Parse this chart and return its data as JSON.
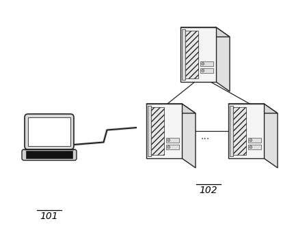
{
  "bg_color": "#ffffff",
  "label_101": "101",
  "label_102": "102",
  "dots_label": "...",
  "line_color": "#222222",
  "server_front_color": "#f5f5f5",
  "server_side_color": "#e0e0e0",
  "server_top_color": "#d8d8d8",
  "server_hatch_color": "#cccccc",
  "laptop_body_color": "#e8e8e8",
  "laptop_screen_color": "#ffffff",
  "laptop_keyboard_color": "#1a1a1a",
  "laptop_base_color": "#d0d0d0"
}
